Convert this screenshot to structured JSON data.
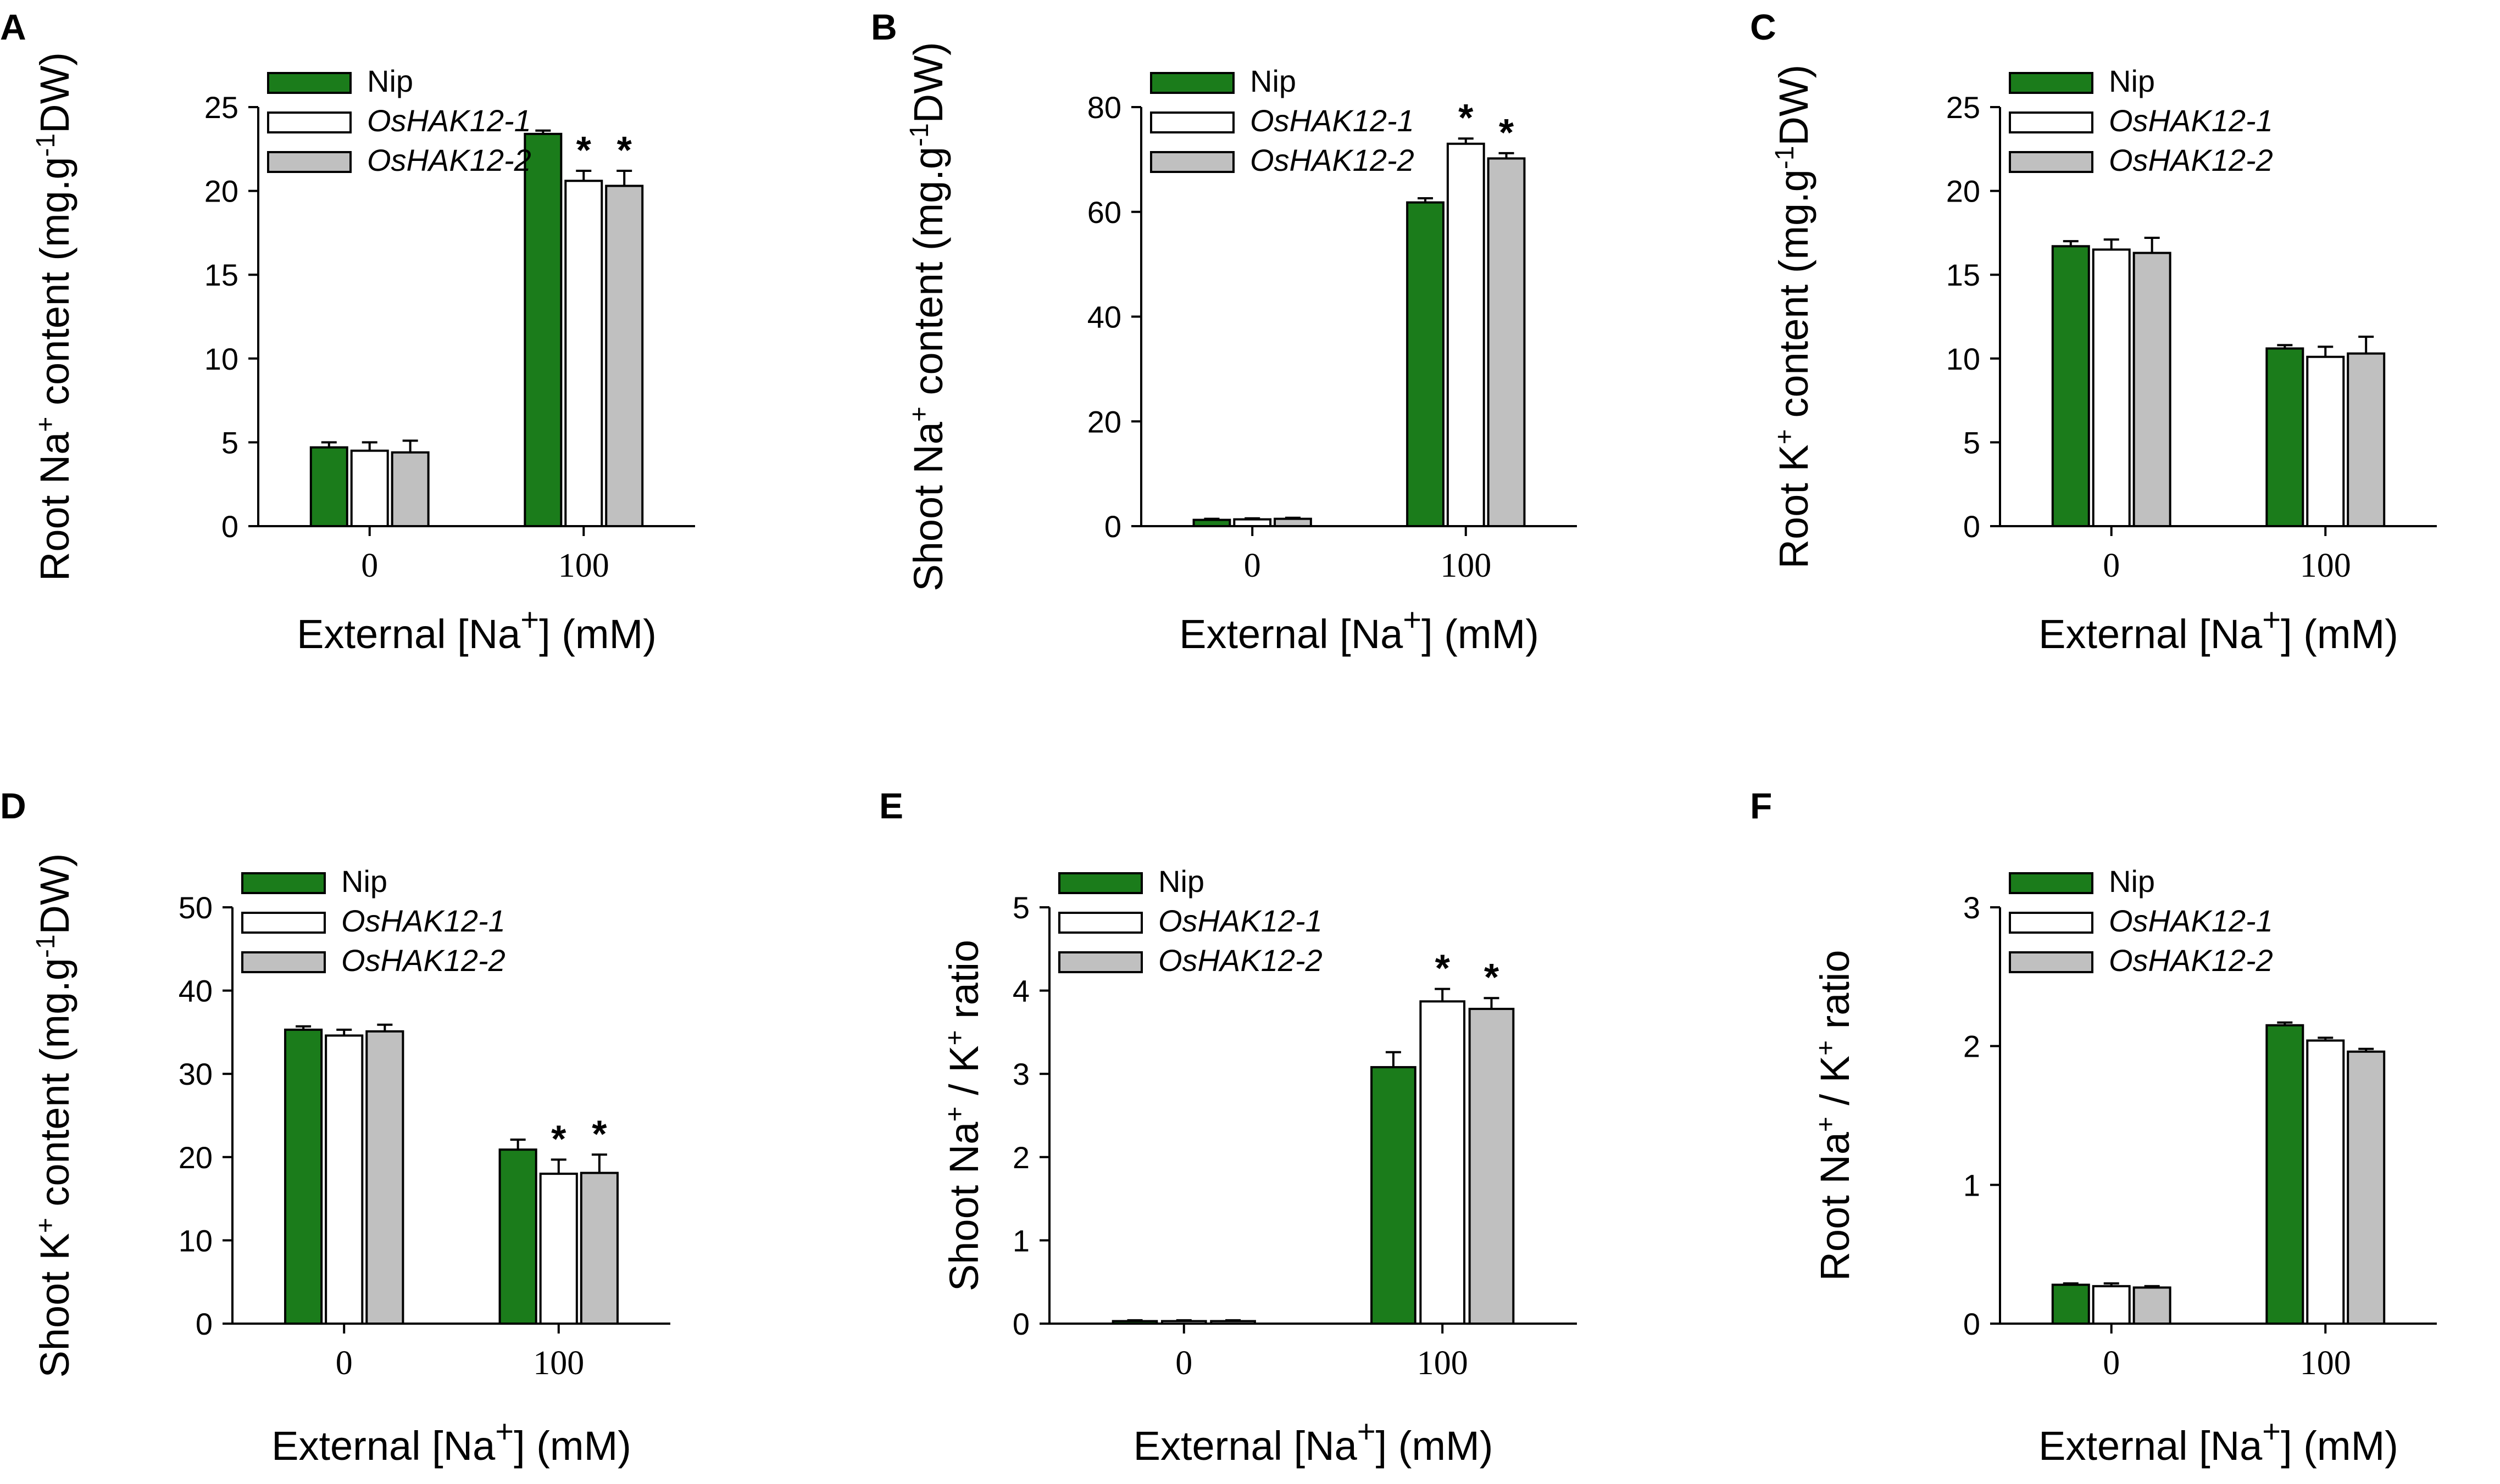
{
  "figure": {
    "legend_colors": {
      "Nip": "#1b7c1b",
      "OsHAK12-1": "#ffffff",
      "OsHAK12-2": "#c0c0c0"
    },
    "xlabel_parts": {
      "prefix": "External [Na",
      "sup": "+",
      "suffix": "] (mM)"
    }
  },
  "chart_data": [
    {
      "panel": "A",
      "type": "bar",
      "ylabel_parts": [
        "Root Na",
        "+",
        " content (mg.g",
        "-1",
        "DW)"
      ],
      "categories": [
        "0",
        "100"
      ],
      "ylim": [
        0,
        25
      ],
      "yticks": [
        0,
        5,
        10,
        15,
        20,
        25
      ],
      "legend_position": "top-left",
      "series": [
        {
          "name": "Nip",
          "italic": false,
          "values": [
            4.7,
            23.4
          ],
          "errors": [
            0.3,
            0.2
          ],
          "significant": [
            false,
            false
          ]
        },
        {
          "name": "OsHAK12-1",
          "italic": true,
          "values": [
            4.5,
            20.6
          ],
          "errors": [
            0.5,
            0.6
          ],
          "significant": [
            false,
            true
          ]
        },
        {
          "name": "OsHAK12-2",
          "italic": true,
          "values": [
            4.4,
            20.3
          ],
          "errors": [
            0.7,
            0.9
          ],
          "significant": [
            false,
            true
          ]
        }
      ]
    },
    {
      "panel": "B",
      "type": "bar",
      "ylabel_parts": [
        "Shoot Na",
        "+",
        " content (mg.g",
        "-1",
        "DW)"
      ],
      "categories": [
        "0",
        "100"
      ],
      "ylim": [
        0,
        80
      ],
      "yticks": [
        0,
        20,
        40,
        60,
        80
      ],
      "legend_position": "top-left",
      "series": [
        {
          "name": "Nip",
          "italic": false,
          "values": [
            1.2,
            61.8
          ],
          "errors": [
            0.2,
            0.8
          ],
          "significant": [
            false,
            false
          ]
        },
        {
          "name": "OsHAK12-1",
          "italic": true,
          "values": [
            1.3,
            73.0
          ],
          "errors": [
            0.2,
            1.0
          ],
          "significant": [
            false,
            true
          ]
        },
        {
          "name": "OsHAK12-2",
          "italic": true,
          "values": [
            1.4,
            70.2
          ],
          "errors": [
            0.2,
            1.0
          ],
          "significant": [
            false,
            true
          ]
        }
      ]
    },
    {
      "panel": "C",
      "type": "bar",
      "ylabel_parts": [
        "Root K",
        "+",
        " content (mg.g",
        "-1",
        "DW)"
      ],
      "categories": [
        "0",
        "100"
      ],
      "ylim": [
        0,
        25
      ],
      "yticks": [
        0,
        5,
        10,
        15,
        20,
        25
      ],
      "legend_position": "top-left",
      "series": [
        {
          "name": "Nip",
          "italic": false,
          "values": [
            16.7,
            10.6
          ],
          "errors": [
            0.3,
            0.2
          ],
          "significant": [
            false,
            false
          ]
        },
        {
          "name": "OsHAK12-1",
          "italic": true,
          "values": [
            16.5,
            10.1
          ],
          "errors": [
            0.6,
            0.6
          ],
          "significant": [
            false,
            false
          ]
        },
        {
          "name": "OsHAK12-2",
          "italic": true,
          "values": [
            16.3,
            10.3
          ],
          "errors": [
            0.9,
            1.0
          ],
          "significant": [
            false,
            false
          ]
        }
      ]
    },
    {
      "panel": "D",
      "type": "bar",
      "ylabel_parts": [
        "Shoot K",
        "+",
        " content (mg.g",
        "-1",
        "DW)"
      ],
      "categories": [
        "0",
        "100"
      ],
      "ylim": [
        0,
        50
      ],
      "yticks": [
        0,
        10,
        20,
        30,
        40,
        50
      ],
      "legend_position": "top-left",
      "series": [
        {
          "name": "Nip",
          "italic": false,
          "values": [
            35.3,
            20.9
          ],
          "errors": [
            0.4,
            1.2
          ],
          "significant": [
            false,
            false
          ]
        },
        {
          "name": "OsHAK12-1",
          "italic": true,
          "values": [
            34.6,
            18.0
          ],
          "errors": [
            0.7,
            1.7
          ],
          "significant": [
            false,
            true
          ]
        },
        {
          "name": "OsHAK12-2",
          "italic": true,
          "values": [
            35.1,
            18.1
          ],
          "errors": [
            0.8,
            2.2
          ],
          "significant": [
            false,
            true
          ]
        }
      ]
    },
    {
      "panel": "E",
      "type": "bar",
      "ylabel_parts": [
        "Shoot Na",
        "+",
        " / K",
        "+",
        " ratio"
      ],
      "categories": [
        "0",
        "100"
      ],
      "ylim": [
        0,
        5
      ],
      "yticks": [
        0,
        1,
        2,
        3,
        4,
        5
      ],
      "legend_position": "top-left",
      "series": [
        {
          "name": "Nip",
          "italic": false,
          "values": [
            0.03,
            3.08
          ],
          "errors": [
            0.01,
            0.18
          ],
          "significant": [
            false,
            false
          ]
        },
        {
          "name": "OsHAK12-1",
          "italic": true,
          "values": [
            0.03,
            3.87
          ],
          "errors": [
            0.01,
            0.15
          ],
          "significant": [
            false,
            true
          ]
        },
        {
          "name": "OsHAK12-2",
          "italic": true,
          "values": [
            0.03,
            3.78
          ],
          "errors": [
            0.01,
            0.13
          ],
          "significant": [
            false,
            true
          ]
        }
      ]
    },
    {
      "panel": "F",
      "type": "bar",
      "ylabel_parts": [
        "Root Na",
        "+",
        " / K",
        "+",
        " ratio"
      ],
      "categories": [
        "0",
        "100"
      ],
      "ylim": [
        0,
        3
      ],
      "yticks": [
        0,
        1,
        2,
        3
      ],
      "legend_position": "top-left",
      "series": [
        {
          "name": "Nip",
          "italic": false,
          "values": [
            0.28,
            2.15
          ],
          "errors": [
            0.01,
            0.02
          ],
          "significant": [
            false,
            false
          ]
        },
        {
          "name": "OsHAK12-1",
          "italic": true,
          "values": [
            0.27,
            2.04
          ],
          "errors": [
            0.02,
            0.02
          ],
          "significant": [
            false,
            false
          ]
        },
        {
          "name": "OsHAK12-2",
          "italic": true,
          "values": [
            0.26,
            1.96
          ],
          "errors": [
            0.01,
            0.02
          ],
          "significant": [
            false,
            false
          ]
        }
      ]
    }
  ]
}
